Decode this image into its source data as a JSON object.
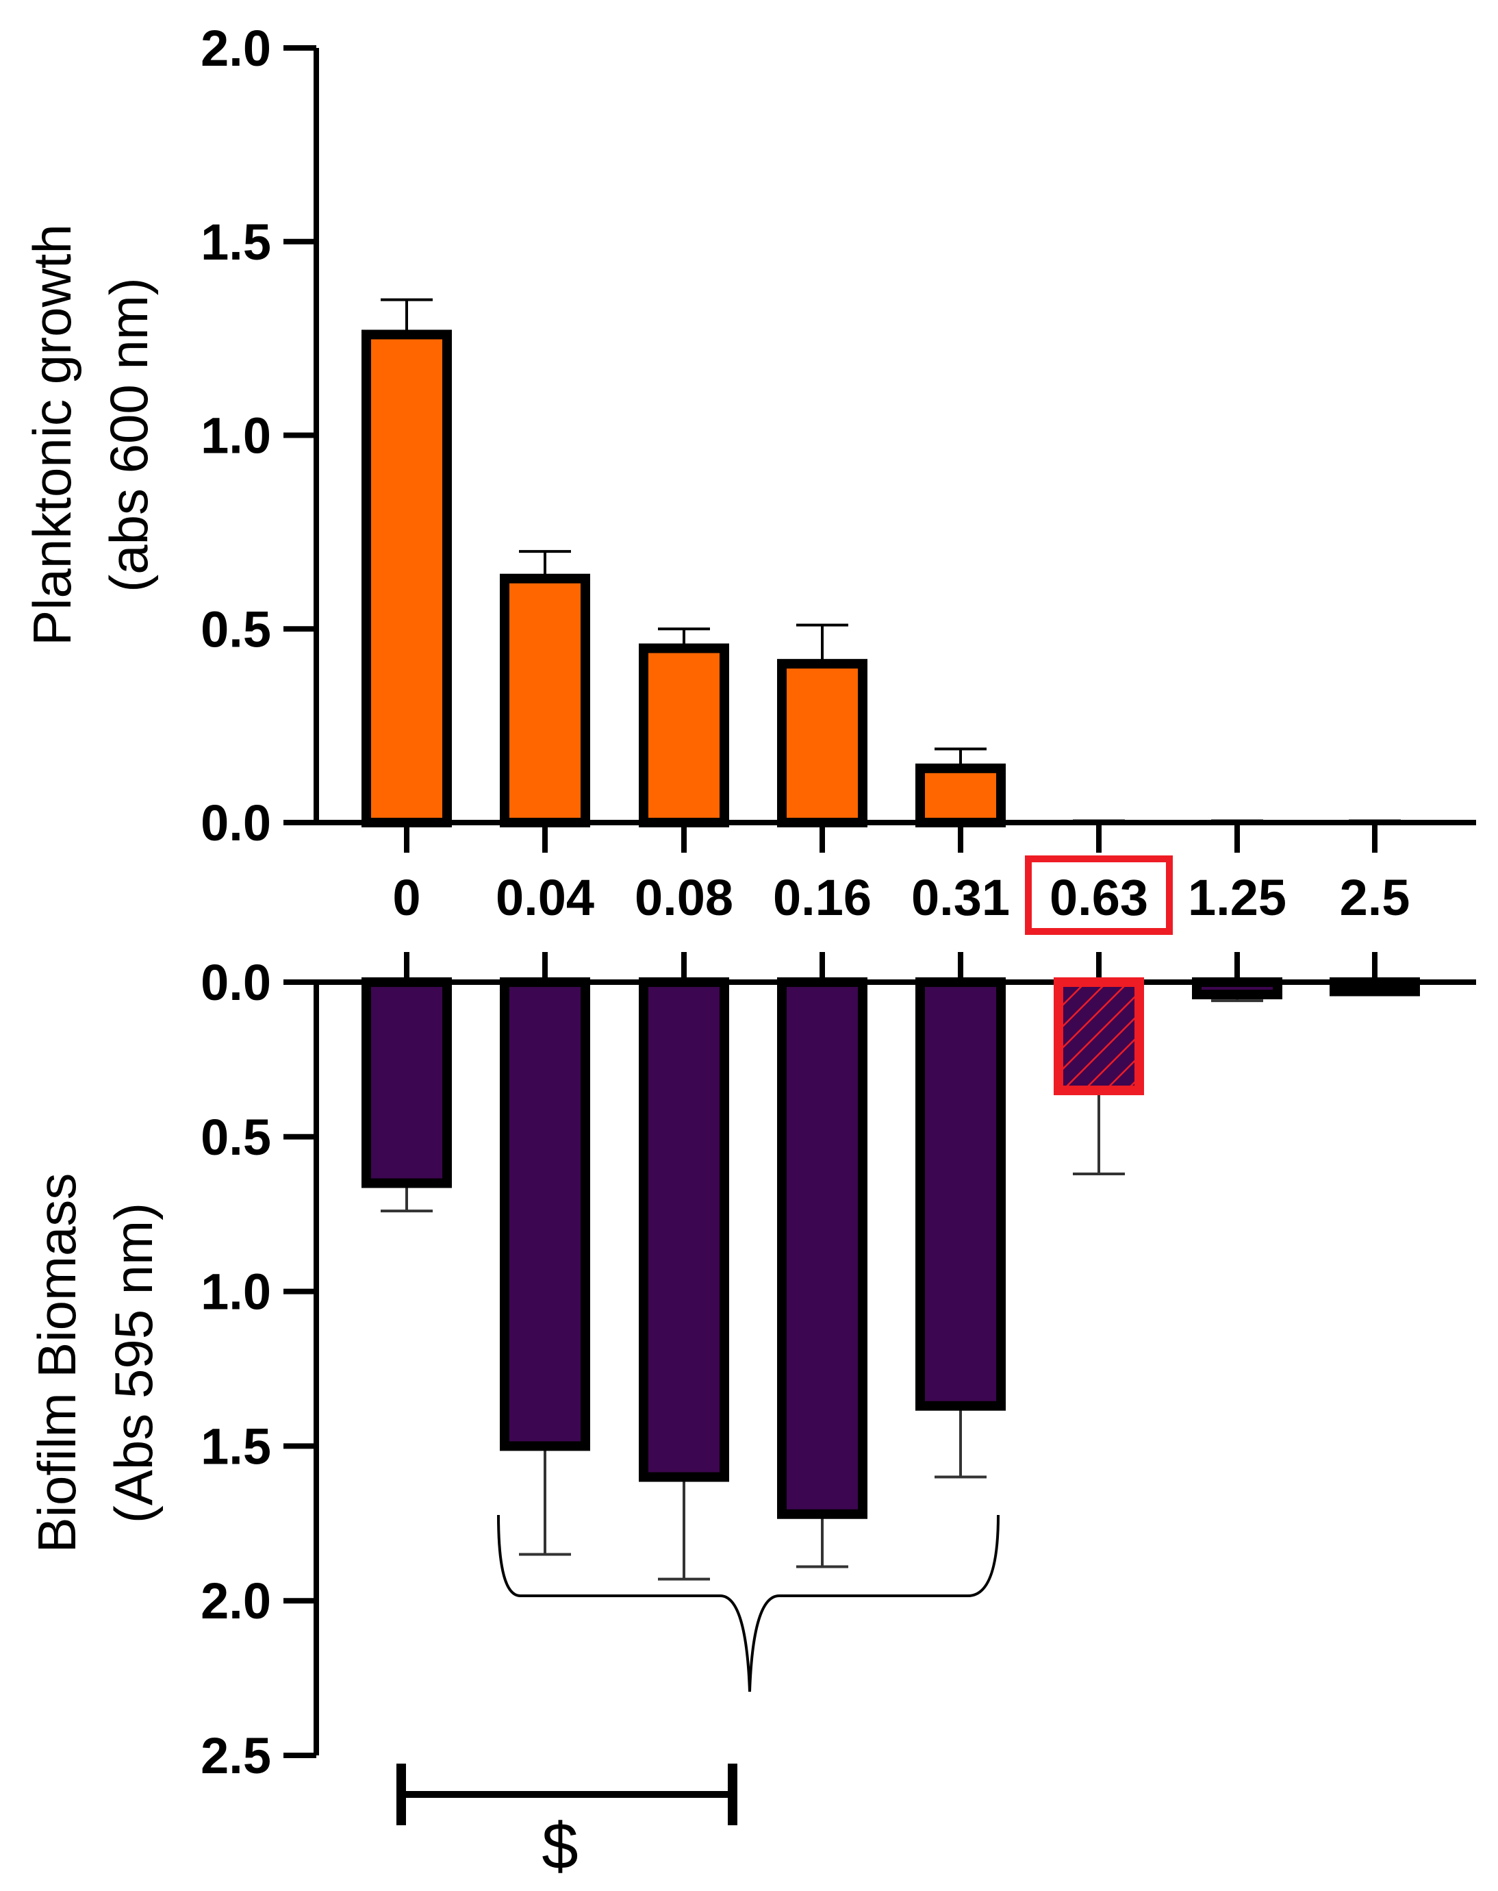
{
  "chart_data": [
    {
      "type": "bar",
      "panel": "top",
      "ylabel_lines": [
        "Planktonic growth",
        "(abs 600 nm)"
      ],
      "ylim": [
        0,
        2.0
      ],
      "yticks": [
        "0.0",
        "0.5",
        "1.0",
        "1.5",
        "2.0"
      ],
      "categories": [
        "0",
        "0.04",
        "0.08",
        "0.16",
        "0.31",
        "0.63",
        "1.25",
        "2.5"
      ],
      "values": [
        1.26,
        0.63,
        0.45,
        0.41,
        0.14,
        0.0,
        0.0,
        0.0
      ],
      "errors": [
        0.09,
        0.07,
        0.05,
        0.1,
        0.05,
        0.0,
        0.0,
        0.0
      ],
      "color": "#ff6600"
    },
    {
      "type": "bar",
      "panel": "bottom",
      "orientation": "inverted",
      "ylabel_lines": [
        "Biofilm Biomass",
        "(Abs 595 nm)"
      ],
      "ylim": [
        0,
        2.5
      ],
      "yticks": [
        "0.0",
        "0.5",
        "1.0",
        "1.5",
        "2.0",
        "2.5"
      ],
      "categories": [
        "0",
        "0.04",
        "0.08",
        "0.16",
        "0.31",
        "0.63",
        "1.25",
        "2.5"
      ],
      "values": [
        0.65,
        1.5,
        1.6,
        1.72,
        1.37,
        0.35,
        0.04,
        0.03
      ],
      "errors": [
        0.09,
        0.35,
        0.33,
        0.17,
        0.23,
        0.27,
        0.02,
        0.01
      ],
      "color": "#3d0650",
      "highlight_color": "#ee1c24",
      "highlighted_category": "0.63",
      "annotations": [
        {
          "type": "brace",
          "from": "0.04",
          "to": "0.31"
        },
        {
          "type": "significance",
          "from": "0",
          "to": "0.08",
          "label": "$"
        }
      ]
    }
  ]
}
